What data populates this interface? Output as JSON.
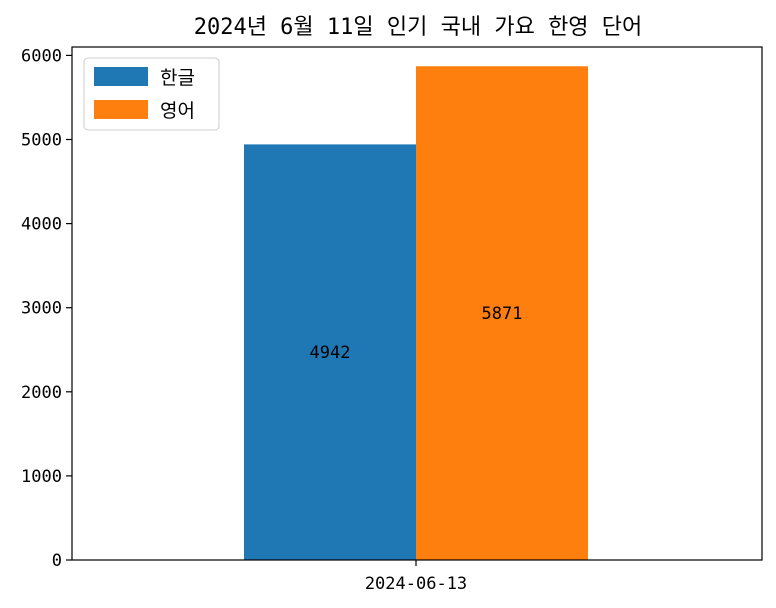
{
  "chart_data": {
    "type": "bar",
    "title": "2024년 6월 11일 인기 국내 가요 한영 단어",
    "xlabel": "",
    "ylabel": "",
    "categories": [
      "2024-06-13"
    ],
    "series": [
      {
        "name": "한글",
        "values": [
          4942
        ],
        "color": "#1f77b4"
      },
      {
        "name": "영어",
        "values": [
          5871
        ],
        "color": "#ff7f0e"
      }
    ],
    "ylim": [
      0,
      6100
    ],
    "yticks": [
      0,
      1000,
      2000,
      3000,
      4000,
      5000,
      6000
    ],
    "ytick_labels": [
      "0",
      "1000",
      "2000",
      "3000",
      "4000",
      "5000",
      "6000"
    ],
    "legend": "top-left",
    "grid": false,
    "data_labels": [
      "4942",
      "5871"
    ]
  }
}
